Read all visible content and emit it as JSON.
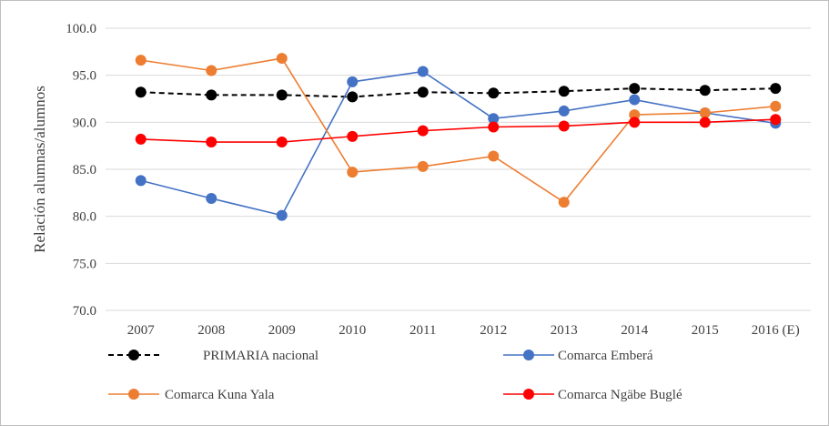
{
  "chart_data": {
    "type": "line",
    "title": "",
    "xlabel": "",
    "ylabel": "Relación alumnas/alumnos",
    "ylim": [
      70,
      100
    ],
    "ytick_step": 5,
    "ytick_labels": [
      "70.0",
      "75.0",
      "80.0",
      "85.0",
      "90.0",
      "95.0",
      "100.0"
    ],
    "grid": true,
    "legend_position": "bottom",
    "categories": [
      "2007",
      "2008",
      "2009",
      "2010",
      "2011",
      "2012",
      "2013",
      "2014",
      "2015",
      "2016 (E)"
    ],
    "series": [
      {
        "name": "PRIMARIA nacional",
        "color": "#000000",
        "dashed": true,
        "values": [
          93.2,
          92.9,
          92.9,
          92.7,
          93.2,
          93.1,
          93.3,
          93.6,
          93.4,
          93.6
        ]
      },
      {
        "name": "Comarca Emberá",
        "color": "#4472c4",
        "dashed": false,
        "values": [
          83.8,
          81.9,
          80.1,
          94.3,
          95.4,
          90.4,
          91.2,
          92.4,
          91.0,
          89.9
        ]
      },
      {
        "name": "Comarca Kuna Yala",
        "color": "#ed7d31",
        "dashed": false,
        "values": [
          96.6,
          95.5,
          96.8,
          84.7,
          85.3,
          86.4,
          81.5,
          90.8,
          91.0,
          91.7
        ]
      },
      {
        "name": "Comarca Ngäbe Buglé",
        "color": "#ff0000",
        "dashed": false,
        "values": [
          88.2,
          87.9,
          87.9,
          88.5,
          89.1,
          89.5,
          89.6,
          90.0,
          90.0,
          90.3
        ]
      }
    ]
  }
}
